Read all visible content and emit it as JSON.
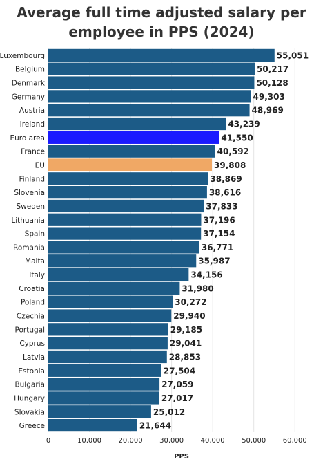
{
  "chart_data": {
    "type": "hbar",
    "title": "Average full time adjusted salary per employee in PPS (2024)",
    "x_label": "PPS",
    "categories": [
      "Luxembourg",
      "Belgium",
      "Denmark",
      "Germany",
      "Austria",
      "Ireland",
      "Euro area",
      "France",
      "EU",
      "Finland",
      "Slovenia",
      "Sweden",
      "Lithuania",
      "Spain",
      "Romania",
      "Malta",
      "Italy",
      "Croatia",
      "Poland",
      "Czechia",
      "Portugal",
      "Cyprus",
      "Latvia",
      "Estonia",
      "Bulgaria",
      "Hungary",
      "Slovakia",
      "Greece"
    ],
    "values": [
      55051,
      50217,
      50128,
      49303,
      48969,
      43239,
      41550,
      40592,
      39808,
      38869,
      38616,
      37833,
      37196,
      37154,
      36771,
      35987,
      34156,
      31980,
      30272,
      29940,
      29185,
      29041,
      28853,
      27504,
      27059,
      27017,
      25012,
      21644
    ],
    "value_labels": [
      "55,051",
      "50,217",
      "50,128",
      "49,303",
      "48,969",
      "43,239",
      "41,550",
      "40,592",
      "39,808",
      "38,869",
      "38,616",
      "37,833",
      "37,196",
      "37,154",
      "36,771",
      "35,987",
      "34,156",
      "31,980",
      "30,272",
      "29,940",
      "29,185",
      "29,041",
      "28,853",
      "27,504",
      "27,059",
      "27,017",
      "25,012",
      "21,644"
    ],
    "colors": [
      "#1c5b87",
      "#1c5b87",
      "#1c5b87",
      "#1c5b87",
      "#1c5b87",
      "#1c5b87",
      "#1a1aff",
      "#1c5b87",
      "#f0a865",
      "#1c5b87",
      "#1c5b87",
      "#1c5b87",
      "#1c5b87",
      "#1c5b87",
      "#1c5b87",
      "#1c5b87",
      "#1c5b87",
      "#1c5b87",
      "#1c5b87",
      "#1c5b87",
      "#1c5b87",
      "#1c5b87",
      "#1c5b87",
      "#1c5b87",
      "#1c5b87",
      "#1c5b87",
      "#1c5b87",
      "#1c5b87"
    ],
    "xlim": [
      0,
      65000
    ],
    "xticks": [
      0,
      {
        "value": 10000,
        "label": "10,000"
      },
      {
        "value": 20000,
        "label": "20,000"
      },
      {
        "value": 30000,
        "label": "30,000"
      },
      {
        "value": 40000,
        "label": "40,000"
      },
      {
        "value": 50000,
        "label": "50,000"
      },
      {
        "value": 60000,
        "label": "60,000"
      }
    ],
    "grid": true
  }
}
